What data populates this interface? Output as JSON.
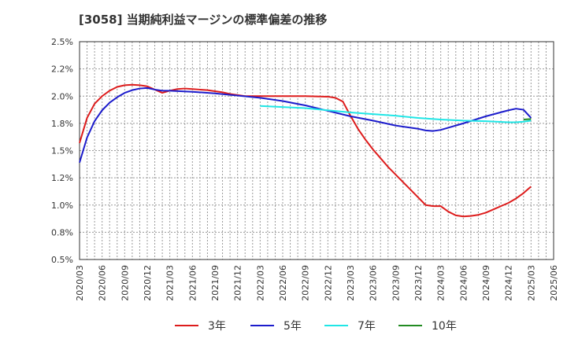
{
  "title": "[3058]  当期純利益マージンの標準偏差の推移",
  "chart_data": {
    "type": "line",
    "title": "[3058]  当期純利益マージンの標準偏差の推移",
    "xlabel": "",
    "ylabel": "",
    "ylim": [
      0.5,
      2.5
    ],
    "y_ticks": [
      0.5,
      0.75,
      1.0,
      1.25,
      1.5,
      1.75,
      2.0,
      2.25,
      2.5
    ],
    "y_tick_labels": [
      "0.5%",
      "0.8%",
      "1.0%",
      "1.2%",
      "1.5%",
      "1.8%",
      "2.0%",
      "2.2%",
      "2.5%"
    ],
    "x_tick_labels": [
      "2020/03",
      "2020/06",
      "2020/09",
      "2020/12",
      "2021/03",
      "2021/06",
      "2021/09",
      "2021/12",
      "2022/03",
      "2022/06",
      "2022/09",
      "2022/12",
      "2023/03",
      "2023/06",
      "2023/09",
      "2023/12",
      "2024/03",
      "2024/06",
      "2024/09",
      "2024/12",
      "2025/03",
      "2025/06"
    ],
    "grid": true,
    "legend_position": "bottom",
    "series": [
      {
        "name": "3年",
        "color": "#dd1c1c",
        "points": [
          [
            "2020/03",
            1.57
          ],
          [
            "2020/04",
            1.8
          ],
          [
            "2020/05",
            1.93
          ],
          [
            "2020/06",
            2.0
          ],
          [
            "2020/07",
            2.05
          ],
          [
            "2020/08",
            2.085
          ],
          [
            "2020/09",
            2.1
          ],
          [
            "2020/10",
            2.105
          ],
          [
            "2020/11",
            2.1
          ],
          [
            "2020/12",
            2.09
          ],
          [
            "2021/01",
            2.06
          ],
          [
            "2021/02",
            2.03
          ],
          [
            "2021/03",
            2.05
          ],
          [
            "2021/04",
            2.065
          ],
          [
            "2021/05",
            2.07
          ],
          [
            "2021/06",
            2.065
          ],
          [
            "2021/07",
            2.06
          ],
          [
            "2021/08",
            2.055
          ],
          [
            "2021/09",
            2.045
          ],
          [
            "2021/10",
            2.035
          ],
          [
            "2021/11",
            2.02
          ],
          [
            "2021/12",
            2.01
          ],
          [
            "2022/01",
            2.0
          ],
          [
            "2022/02",
            2.0
          ],
          [
            "2022/03",
            2.0
          ],
          [
            "2022/06",
            2.0
          ],
          [
            "2022/09",
            2.0
          ],
          [
            "2022/12",
            1.995
          ],
          [
            "2023/01",
            1.985
          ],
          [
            "2023/02",
            1.95
          ],
          [
            "2023/03",
            1.82
          ],
          [
            "2023/04",
            1.7
          ],
          [
            "2023/05",
            1.6
          ],
          [
            "2023/06",
            1.51
          ],
          [
            "2023/07",
            1.43
          ],
          [
            "2023/08",
            1.35
          ],
          [
            "2023/09",
            1.28
          ],
          [
            "2023/10",
            1.21
          ],
          [
            "2023/11",
            1.14
          ],
          [
            "2023/12",
            1.07
          ],
          [
            "2024/01",
            1.0
          ],
          [
            "2024/02",
            0.99
          ],
          [
            "2024/03",
            0.99
          ],
          [
            "2024/04",
            0.94
          ],
          [
            "2024/05",
            0.905
          ],
          [
            "2024/06",
            0.895
          ],
          [
            "2024/07",
            0.9
          ],
          [
            "2024/08",
            0.91
          ],
          [
            "2024/09",
            0.93
          ],
          [
            "2024/10",
            0.96
          ],
          [
            "2024/11",
            0.99
          ],
          [
            "2024/12",
            1.02
          ],
          [
            "2025/01",
            1.06
          ],
          [
            "2025/02",
            1.11
          ],
          [
            "2025/03",
            1.17
          ]
        ]
      },
      {
        "name": "5年",
        "color": "#1c1ccc",
        "points": [
          [
            "2020/03",
            1.39
          ],
          [
            "2020/04",
            1.62
          ],
          [
            "2020/05",
            1.77
          ],
          [
            "2020/06",
            1.87
          ],
          [
            "2020/07",
            1.94
          ],
          [
            "2020/08",
            1.99
          ],
          [
            "2020/09",
            2.03
          ],
          [
            "2020/10",
            2.055
          ],
          [
            "2020/11",
            2.07
          ],
          [
            "2020/12",
            2.075
          ],
          [
            "2021/01",
            2.06
          ],
          [
            "2021/02",
            2.05
          ],
          [
            "2021/03",
            2.05
          ],
          [
            "2021/06",
            2.04
          ],
          [
            "2021/09",
            2.025
          ],
          [
            "2021/12",
            2.005
          ],
          [
            "2022/03",
            1.985
          ],
          [
            "2022/06",
            1.955
          ],
          [
            "2022/09",
            1.915
          ],
          [
            "2022/12",
            1.865
          ],
          [
            "2023/03",
            1.815
          ],
          [
            "2023/06",
            1.775
          ],
          [
            "2023/09",
            1.73
          ],
          [
            "2023/12",
            1.7
          ],
          [
            "2024/01",
            1.685
          ],
          [
            "2024/02",
            1.68
          ],
          [
            "2024/03",
            1.69
          ],
          [
            "2024/06",
            1.75
          ],
          [
            "2024/09",
            1.815
          ],
          [
            "2024/12",
            1.87
          ],
          [
            "2025/01",
            1.885
          ],
          [
            "2025/02",
            1.875
          ],
          [
            "2025/03",
            1.8
          ]
        ]
      },
      {
        "name": "7年",
        "color": "#20e6e6",
        "points": [
          [
            "2022/03",
            1.91
          ],
          [
            "2022/06",
            1.9
          ],
          [
            "2022/09",
            1.89
          ],
          [
            "2022/12",
            1.87
          ],
          [
            "2023/03",
            1.85
          ],
          [
            "2023/06",
            1.835
          ],
          [
            "2023/09",
            1.82
          ],
          [
            "2023/12",
            1.8
          ],
          [
            "2024/03",
            1.785
          ],
          [
            "2024/06",
            1.775
          ],
          [
            "2024/09",
            1.77
          ],
          [
            "2024/12",
            1.76
          ],
          [
            "2025/01",
            1.76
          ],
          [
            "2025/02",
            1.765
          ],
          [
            "2025/03",
            1.775
          ]
        ]
      },
      {
        "name": "10年",
        "color": "#228b22",
        "points": [
          [
            "2025/02",
            1.785
          ],
          [
            "2025/03",
            1.79
          ]
        ]
      }
    ]
  }
}
